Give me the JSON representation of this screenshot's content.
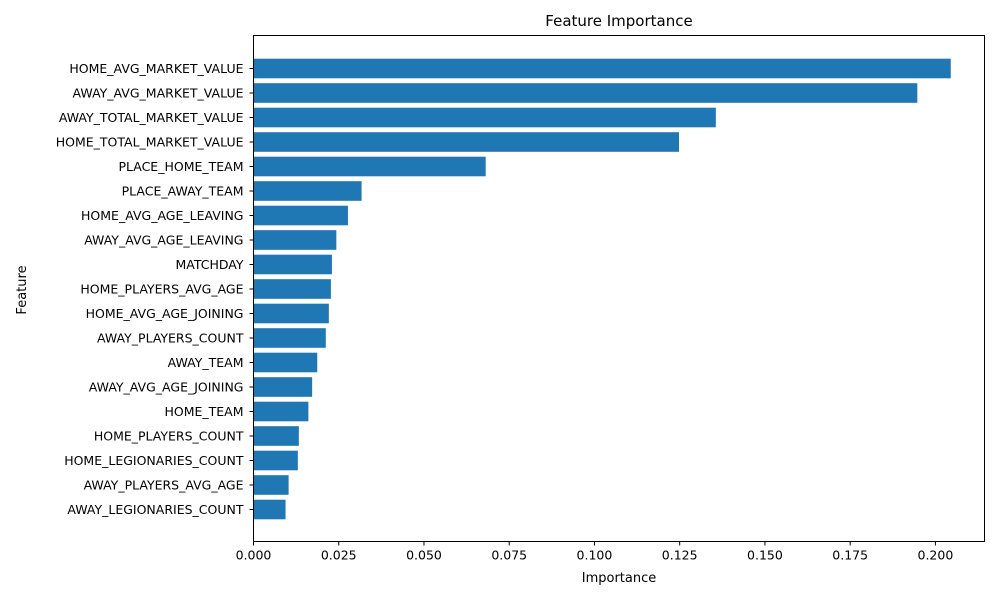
{
  "chart_data": {
    "type": "bar",
    "orientation": "horizontal",
    "title": "Feature Importance",
    "xlabel": "Importance",
    "ylabel": "Feature",
    "xlim": [
      0.0,
      0.2144
    ],
    "x_ticks": [
      "0.000",
      "0.025",
      "0.050",
      "0.075",
      "0.100",
      "0.125",
      "0.150",
      "0.175",
      "0.200"
    ],
    "grid": false,
    "bar_color": "#1f77b4",
    "categories": [
      "HOME_AVG_MARKET_VALUE",
      "AWAY_AVG_MARKET_VALUE",
      "AWAY_TOTAL_MARKET_VALUE",
      "HOME_TOTAL_MARKET_VALUE",
      "PLACE_HOME_TEAM",
      "PLACE_AWAY_TEAM",
      "HOME_AVG_AGE_LEAVING",
      "AWAY_AVG_AGE_LEAVING",
      "MATCHDAY",
      "HOME_PLAYERS_AVG_AGE",
      "HOME_AVG_AGE_JOINING",
      "AWAY_PLAYERS_COUNT",
      "AWAY_TEAM",
      "AWAY_AVG_AGE_JOINING",
      "HOME_TEAM",
      "HOME_PLAYERS_COUNT",
      "HOME_LEGIONARIES_COUNT",
      "AWAY_PLAYERS_AVG_AGE",
      "AWAY_LEGIONARIES_COUNT"
    ],
    "values": [
      0.2045,
      0.1947,
      0.1356,
      0.1248,
      0.0681,
      0.0317,
      0.0277,
      0.0243,
      0.023,
      0.0227,
      0.0221,
      0.0212,
      0.0187,
      0.0172,
      0.0161,
      0.0133,
      0.013,
      0.0103,
      0.0094
    ]
  }
}
